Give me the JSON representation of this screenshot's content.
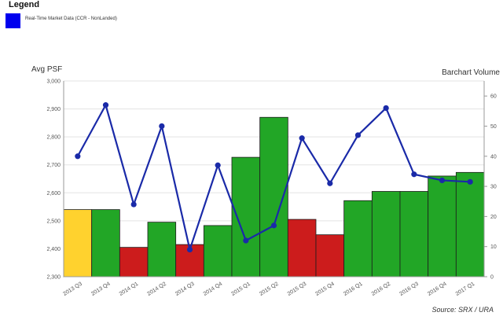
{
  "legend": {
    "title": "Legend",
    "label": "Real-Time Market Data (CCR - NonLanded)",
    "swatch_color": "#0000ee"
  },
  "source": "Source: SRX / URA",
  "chart_data": {
    "type": "bar",
    "categories": [
      "2013 Q3",
      "2013 Q4",
      "2014 Q1",
      "2014 Q2",
      "2014 Q3",
      "2014 Q4",
      "2015 Q1",
      "2015 Q2",
      "2015 Q3",
      "2015 Q4",
      "2016 Q1",
      "2016 Q2",
      "2016 Q3",
      "2016 Q4",
      "2017 Q1"
    ],
    "bar_series": {
      "values": [
        2540,
        2540,
        2405,
        2495,
        2415,
        2483,
        2727,
        2870,
        2505,
        2450,
        2572,
        2605,
        2605,
        2660,
        2673
      ],
      "colors": [
        "#ffd22e",
        "#22a626",
        "#cc1c1c",
        "#22a626",
        "#cc1c1c",
        "#22a626",
        "#22a626",
        "#22a626",
        "#cc1c1c",
        "#cc1c1c",
        "#22a626",
        "#22a626",
        "#22a626",
        "#22a626",
        "#22a626"
      ]
    },
    "series": [
      {
        "name": "Real-Time Market Data (CCR - NonLanded)",
        "values": [
          40,
          57,
          24,
          50,
          9,
          37,
          12,
          17,
          46,
          31,
          47,
          56,
          34,
          32,
          31.5
        ]
      }
    ],
    "ylabel": "Avg PSF",
    "ylabel_right": "Barchart Volume",
    "ylim": [
      2300,
      3000
    ],
    "ylim_right": [
      0,
      65
    ],
    "yticks": [
      "2,300",
      "2,400",
      "2,500",
      "2,600",
      "2,700",
      "2,800",
      "2,900",
      "3,000"
    ],
    "yticks_right": [
      "0",
      "10",
      "20",
      "30",
      "40",
      "50",
      "60"
    ],
    "grid": true,
    "line_color": "#1a2aa8"
  }
}
